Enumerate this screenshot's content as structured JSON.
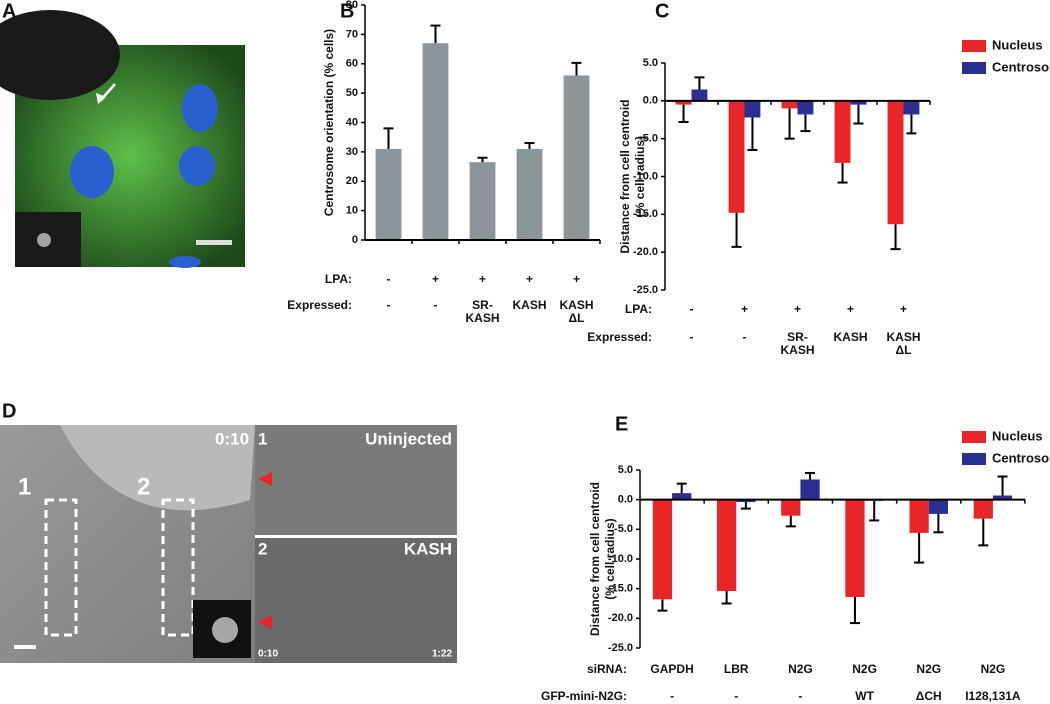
{
  "panel_letters": [
    "A",
    "B",
    "C",
    "D",
    "E"
  ],
  "panel_d": {
    "time_main": "0:10",
    "region_labels": [
      "1",
      "2"
    ],
    "strips": [
      {
        "number": "1",
        "label": "Uninjected"
      },
      {
        "number": "2",
        "label": "KASH"
      }
    ],
    "time_start": "0:10",
    "time_end": "1:22"
  },
  "chart_data": [
    {
      "type": "bar",
      "y_label": [
        "Centrosome orientation (% cells)"
      ],
      "category_rows": [
        {
          "name": "LPA:",
          "labels": [
            "-",
            "+",
            "+",
            "+",
            "+"
          ]
        },
        {
          "name": "Expressed:",
          "labels": [
            "-",
            "-",
            "SR-\nKASH",
            "KASH",
            "KASH\nΔL"
          ]
        }
      ],
      "series": [
        {
          "color": "#8c9599",
          "values": [
            31,
            67,
            26.5,
            31,
            56
          ],
          "errors": [
            7,
            6,
            1.5,
            2,
            4.3
          ]
        }
      ],
      "ylim": [
        0,
        80
      ],
      "yticks": [
        0,
        10,
        20,
        30,
        40,
        50,
        60,
        70,
        80
      ]
    },
    {
      "type": "bar",
      "y_label": [
        "Distance from cell centroid",
        "(% cell radius)"
      ],
      "category_rows": [
        {
          "name": "LPA:",
          "labels": [
            "-",
            "+",
            "+",
            "+",
            "+"
          ]
        },
        {
          "name": "Expressed:",
          "labels": [
            "-",
            "-",
            "SR-\nKASH",
            "KASH",
            "KASH\nΔL"
          ]
        }
      ],
      "series": [
        {
          "name": "Nucleus",
          "color": "#e8262a",
          "values": [
            -0.5,
            -14.8,
            -1,
            -8.2,
            -16.3
          ],
          "errors": [
            2.3,
            4.5,
            4,
            2.6,
            3.3
          ]
        },
        {
          "name": "Centrosome",
          "color": "#2b2f92",
          "values": [
            1.5,
            -2.2,
            -1.8,
            -0.5,
            -1.8
          ],
          "errors": [
            1.6,
            4.3,
            2.2,
            2.5,
            2.5
          ]
        }
      ],
      "ylim": [
        -25,
        5
      ],
      "yticks": [
        {
          "value": 5,
          "label": "5.0"
        },
        {
          "value": 0,
          "label": "0.0"
        },
        {
          "value": -5,
          "label": "-5.0"
        },
        {
          "value": -10,
          "label": "-10.0"
        },
        {
          "value": -15,
          "label": "-15.0"
        },
        {
          "value": -20,
          "label": "-20.0"
        },
        {
          "value": -25,
          "label": "-25.0"
        }
      ]
    },
    {
      "type": "bar",
      "y_label": [
        "Distance from cell centroid",
        "(% cell radius)"
      ],
      "category_rows": [
        {
          "name": "siRNA:",
          "labels": [
            "GAPDH",
            "LBR",
            "N2G",
            "N2G",
            "N2G",
            "N2G"
          ]
        },
        {
          "name": "GFP-mini-N2G:",
          "labels": [
            "-",
            "-",
            "-",
            "WT",
            "ΔCH",
            "I128,131A"
          ]
        }
      ],
      "series": [
        {
          "name": "Nucleus",
          "color": "#e8262a",
          "values": [
            -16.8,
            -15.4,
            -2.7,
            -16.4,
            -5.6,
            -3.2
          ],
          "errors": [
            1.9,
            2.1,
            1.8,
            4.4,
            5,
            4.5
          ]
        },
        {
          "name": "Centrosome",
          "color": "#2b2f92",
          "values": [
            1.1,
            -0.4,
            3.4,
            -0.2,
            -2.4,
            0.7
          ],
          "errors": [
            1.6,
            1.1,
            1.1,
            3.3,
            3.1,
            3.2
          ]
        }
      ],
      "ylim": [
        -25,
        5
      ],
      "yticks": [
        {
          "value": 5,
          "label": "5.0"
        },
        {
          "value": 0,
          "label": "0.0"
        },
        {
          "value": -5,
          "label": "-5.0"
        },
        {
          "value": -10,
          "label": "-10.0"
        },
        {
          "value": -15,
          "label": "-15.0"
        },
        {
          "value": -20,
          "label": "-20.0"
        },
        {
          "value": -25,
          "label": "-25.0"
        }
      ]
    }
  ]
}
